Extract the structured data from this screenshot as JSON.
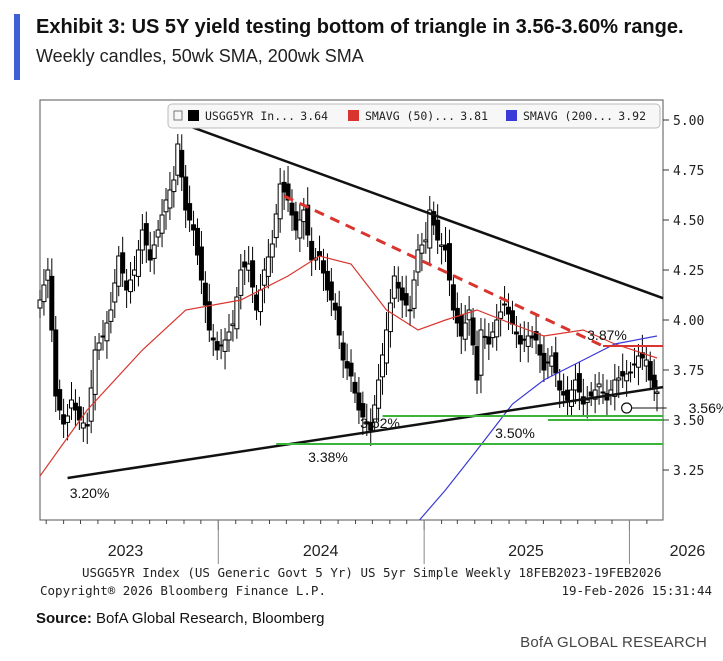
{
  "header": {
    "title": "Exhibit 3: US 5Y yield testing bottom of triangle in 3.56-3.60% range.",
    "subtitle": "Weekly candles, 50wk SMA, 200wk SMA"
  },
  "footer": {
    "source_label": "Source:",
    "source_text": "BofA Global Research, Bloomberg",
    "brand": "BofA GLOBAL RESEARCH"
  },
  "colors": {
    "candle": "#000000",
    "sma50": "#d9352e",
    "sma200": "#3a3ad8",
    "triangle": "#111111",
    "level_red": "#d9352e",
    "level_green": "#3bb43b"
  },
  "chart_data": {
    "type": "candlestick",
    "title": "Exhibit 3: US 5Y yield testing bottom of triangle in 3.56-3.60% range.",
    "subtitle": "Weekly candles, 50wk SMA, 200wk SMA",
    "ylim": [
      3.0,
      5.1
    ],
    "y_ticks": [
      "5.00",
      "4.75",
      "4.50",
      "4.25",
      "4.00",
      "3.75",
      "3.50",
      "3.25"
    ],
    "x_start": "2023-02-18",
    "x_end": "2026-02-19",
    "x_tick_labels": [
      "2023",
      "2024",
      "2025",
      "2026"
    ],
    "legend": [
      {
        "marker": "black",
        "label": "USGG5YR In...",
        "value": "3.64"
      },
      {
        "marker": "red",
        "label": "SMAVG (50)...",
        "value": "3.81"
      },
      {
        "marker": "blue",
        "label": "SMAVG (200...",
        "value": "3.92"
      }
    ],
    "legend_position": "top-right",
    "bottom_caption": "USGG5YR Index (US Generic Govt 5 Yr) US 5yr Simple Weekly 18FEB2023-19FEB2026",
    "copyright": "Copyright® 2026 Bloomberg Finance L.P.",
    "timestamp": "19-Feb-2026 15:31:44",
    "series": [
      {
        "name": "USGG5YR In...",
        "kind": "weekly close (approx.)",
        "points": [
          [
            "2023-02-18",
            4.1
          ],
          [
            "2023-03-04",
            4.25
          ],
          [
            "2023-03-11",
            3.95
          ],
          [
            "2023-03-18",
            3.62
          ],
          [
            "2023-03-25",
            3.55
          ],
          [
            "2023-04-01",
            3.48
          ],
          [
            "2023-04-08",
            3.52
          ],
          [
            "2023-04-15",
            3.6
          ],
          [
            "2023-04-29",
            3.5
          ],
          [
            "2023-05-13",
            3.47
          ],
          [
            "2023-05-27",
            3.85
          ],
          [
            "2023-06-10",
            3.92
          ],
          [
            "2023-06-24",
            4.05
          ],
          [
            "2023-07-08",
            4.32
          ],
          [
            "2023-07-22",
            4.15
          ],
          [
            "2023-08-05",
            4.25
          ],
          [
            "2023-08-19",
            4.45
          ],
          [
            "2023-09-02",
            4.3
          ],
          [
            "2023-09-16",
            4.45
          ],
          [
            "2023-09-30",
            4.6
          ],
          [
            "2023-10-14",
            4.7
          ],
          [
            "2023-10-21",
            4.88
          ],
          [
            "2023-11-04",
            4.55
          ],
          [
            "2023-11-18",
            4.45
          ],
          [
            "2023-12-02",
            4.2
          ],
          [
            "2023-12-16",
            3.95
          ],
          [
            "2023-12-30",
            3.85
          ],
          [
            "2024-01-13",
            3.9
          ],
          [
            "2024-01-27",
            3.98
          ],
          [
            "2024-02-10",
            4.25
          ],
          [
            "2024-02-24",
            4.28
          ],
          [
            "2024-03-09",
            4.05
          ],
          [
            "2024-03-23",
            4.25
          ],
          [
            "2024-04-06",
            4.38
          ],
          [
            "2024-04-20",
            4.68
          ],
          [
            "2024-05-04",
            4.6
          ],
          [
            "2024-05-18",
            4.45
          ],
          [
            "2024-06-01",
            4.55
          ],
          [
            "2024-06-15",
            4.3
          ],
          [
            "2024-06-29",
            4.32
          ],
          [
            "2024-07-13",
            4.15
          ],
          [
            "2024-07-27",
            4.05
          ],
          [
            "2024-08-10",
            3.8
          ],
          [
            "2024-08-24",
            3.72
          ],
          [
            "2024-09-07",
            3.55
          ],
          [
            "2024-09-21",
            3.48
          ],
          [
            "2024-09-28",
            3.45
          ],
          [
            "2024-10-12",
            3.7
          ],
          [
            "2024-10-26",
            3.95
          ],
          [
            "2024-11-09",
            4.22
          ],
          [
            "2024-11-23",
            4.1
          ],
          [
            "2024-12-07",
            4.05
          ],
          [
            "2024-12-21",
            4.35
          ],
          [
            "2025-01-04",
            4.4
          ],
          [
            "2025-01-11",
            4.55
          ],
          [
            "2025-01-25",
            4.4
          ],
          [
            "2025-02-08",
            4.35
          ],
          [
            "2025-02-22",
            4.05
          ],
          [
            "2025-03-08",
            3.92
          ],
          [
            "2025-03-22",
            4.05
          ],
          [
            "2025-04-05",
            3.7
          ],
          [
            "2025-04-12",
            3.95
          ],
          [
            "2025-04-26",
            3.88
          ],
          [
            "2025-05-10",
            4.0
          ],
          [
            "2025-05-24",
            4.08
          ],
          [
            "2025-06-07",
            3.98
          ],
          [
            "2025-06-21",
            3.88
          ],
          [
            "2025-07-05",
            3.92
          ],
          [
            "2025-07-19",
            3.9
          ],
          [
            "2025-08-02",
            3.75
          ],
          [
            "2025-08-16",
            3.82
          ],
          [
            "2025-08-30",
            3.65
          ],
          [
            "2025-09-13",
            3.6
          ],
          [
            "2025-09-27",
            3.7
          ],
          [
            "2025-10-11",
            3.58
          ],
          [
            "2025-10-25",
            3.62
          ],
          [
            "2025-11-08",
            3.68
          ],
          [
            "2025-11-22",
            3.6
          ],
          [
            "2025-12-06",
            3.7
          ],
          [
            "2025-12-20",
            3.72
          ],
          [
            "2026-01-03",
            3.74
          ],
          [
            "2026-01-17",
            3.82
          ],
          [
            "2026-01-31",
            3.8
          ],
          [
            "2026-02-07",
            3.7
          ],
          [
            "2026-02-19",
            3.64
          ]
        ]
      },
      {
        "name": "SMAVG (50)...",
        "points": [
          [
            "2023-02-18",
            3.22
          ],
          [
            "2023-05-13",
            3.55
          ],
          [
            "2023-08-19",
            3.85
          ],
          [
            "2023-11-04",
            4.05
          ],
          [
            "2024-02-10",
            4.1
          ],
          [
            "2024-05-04",
            4.22
          ],
          [
            "2024-06-29",
            4.32
          ],
          [
            "2024-08-24",
            4.28
          ],
          [
            "2024-10-26",
            4.05
          ],
          [
            "2024-12-21",
            3.95
          ],
          [
            "2025-02-08",
            4.0
          ],
          [
            "2025-04-05",
            4.05
          ],
          [
            "2025-06-07",
            3.98
          ],
          [
            "2025-08-02",
            3.92
          ],
          [
            "2025-10-11",
            3.95
          ],
          [
            "2025-12-06",
            3.88
          ],
          [
            "2026-02-19",
            3.81
          ]
        ]
      },
      {
        "name": "SMAVG (200...",
        "points": [
          [
            "2024-11-23",
            2.9
          ],
          [
            "2025-02-08",
            3.15
          ],
          [
            "2025-04-05",
            3.35
          ],
          [
            "2025-06-07",
            3.58
          ],
          [
            "2025-08-02",
            3.7
          ],
          [
            "2025-10-11",
            3.8
          ],
          [
            "2025-12-06",
            3.88
          ],
          [
            "2026-02-19",
            3.92
          ]
        ]
      }
    ],
    "annotations": {
      "triangle_upper": [
        [
          "2023-10-21",
          4.99
        ],
        [
          "2026-02-19",
          4.12
        ]
      ],
      "triangle_lower": [
        [
          "2023-04-08",
          3.21
        ],
        [
          "2026-02-19",
          3.66
        ]
      ],
      "dashed_resistance": [
        [
          "2024-04-27",
          4.62
        ],
        [
          "2025-11-15",
          3.87
        ]
      ],
      "level_lines": [
        {
          "value": 3.87,
          "color": "red",
          "from": "2025-11-15",
          "label": "3.87%"
        },
        {
          "value": 3.52,
          "color": "green",
          "from": "2024-10-19",
          "label": "3.52%"
        },
        {
          "value": 3.5,
          "color": "green",
          "from": "2025-08-09",
          "label": "3.50%"
        },
        {
          "value": 3.38,
          "color": "green",
          "from": "2024-04-13",
          "label": "3.38%"
        }
      ],
      "point_labels": [
        {
          "date": "2023-04-08",
          "value": 3.2,
          "label": "3.20%"
        },
        {
          "date": "2025-12-27",
          "value": 3.56,
          "label": "3.56%"
        }
      ]
    }
  }
}
